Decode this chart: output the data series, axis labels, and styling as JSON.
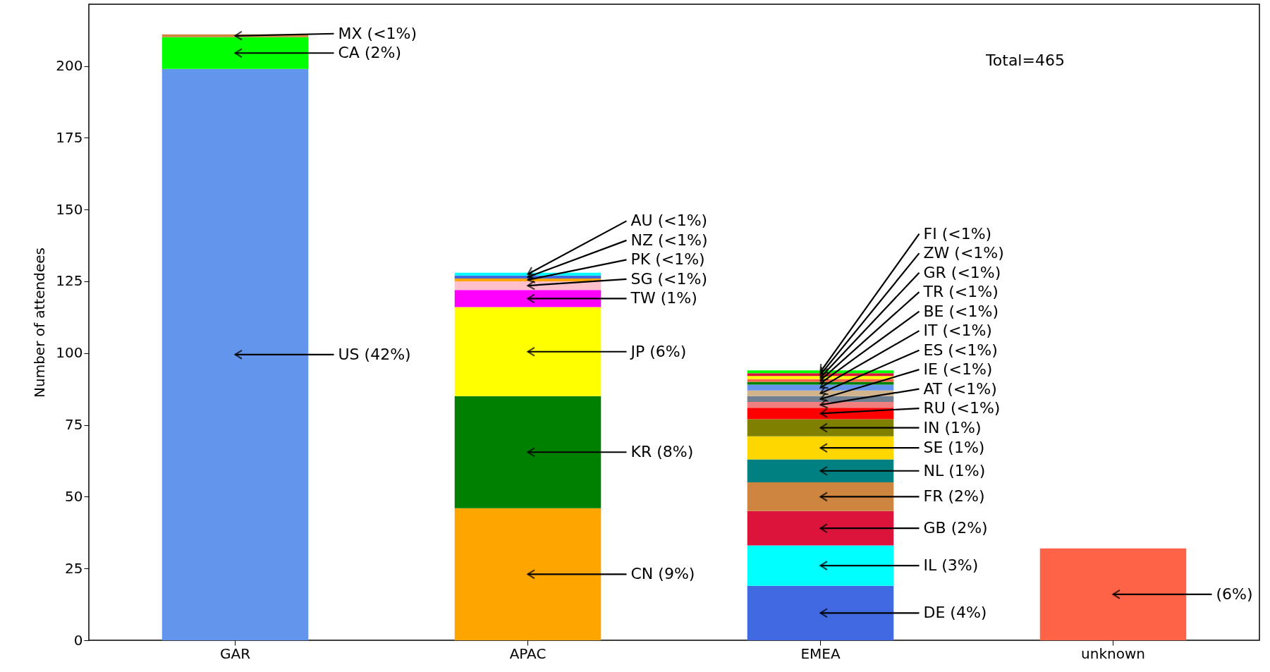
{
  "chart_data": {
    "type": "bar",
    "stacked": true,
    "ylabel": "Number of attendees",
    "categories": [
      "GAR",
      "APAC",
      "EMEA",
      "unknown"
    ],
    "ylim": [
      0,
      221.5
    ],
    "yticks": [
      0,
      25,
      50,
      75,
      100,
      125,
      150,
      175,
      200
    ],
    "series": [
      {
        "name": "US (42%)",
        "color": "#6495ed",
        "values": [
          199,
          null,
          null,
          null
        ]
      },
      {
        "name": "CA (2%)",
        "color": "#00ff00",
        "values": [
          11,
          null,
          null,
          null
        ]
      },
      {
        "name": "MX (<1%)",
        "color": "#cd853f",
        "values": [
          1,
          null,
          null,
          null
        ]
      },
      {
        "name": "CN (9%)",
        "color": "#ffa500",
        "values": [
          null,
          46,
          null,
          null
        ]
      },
      {
        "name": "KR (8%)",
        "color": "#008000",
        "values": [
          null,
          39,
          null,
          null
        ]
      },
      {
        "name": "JP (6%)",
        "color": "#ffff00",
        "values": [
          null,
          31,
          null,
          null
        ]
      },
      {
        "name": "TW (1%)",
        "color": "#ff00ff",
        "values": [
          null,
          6,
          null,
          null
        ]
      },
      {
        "name": "SG (<1%)",
        "color": "#ffc0cb",
        "values": [
          null,
          3,
          null,
          null
        ]
      },
      {
        "name": "PK (<1%)",
        "color": "#ffa500",
        "values": [
          null,
          1,
          null,
          null
        ]
      },
      {
        "name": "NZ (<1%)",
        "color": "#4169e1",
        "values": [
          null,
          1,
          null,
          null
        ]
      },
      {
        "name": "AU (<1%)",
        "color": "#00ffff",
        "values": [
          null,
          1,
          null,
          null
        ]
      },
      {
        "name": "DE (4%)",
        "color": "#4169e1",
        "values": [
          null,
          null,
          19,
          null
        ]
      },
      {
        "name": "IL (3%)",
        "color": "#00ffff",
        "values": [
          null,
          null,
          14,
          null
        ]
      },
      {
        "name": "GB (2%)",
        "color": "#dc143c",
        "values": [
          null,
          null,
          12,
          null
        ]
      },
      {
        "name": "FR (2%)",
        "color": "#cd853f",
        "values": [
          null,
          null,
          10,
          null
        ]
      },
      {
        "name": "NL (1%)",
        "color": "#008080",
        "values": [
          null,
          null,
          8,
          null
        ]
      },
      {
        "name": "SE (1%)",
        "color": "#ffd700",
        "values": [
          null,
          null,
          8,
          null
        ]
      },
      {
        "name": "IN (1%)",
        "color": "#808000",
        "values": [
          null,
          null,
          6,
          null
        ]
      },
      {
        "name": "RU (<1%)",
        "color": "#ff0000",
        "values": [
          null,
          null,
          4,
          null
        ]
      },
      {
        "name": "AT (<1%)",
        "color": "#f08080",
        "values": [
          null,
          null,
          2,
          null
        ]
      },
      {
        "name": "IE (<1%)",
        "color": "#708090",
        "values": [
          null,
          null,
          2,
          null
        ]
      },
      {
        "name": "ES (<1%)",
        "color": "#d2b48c",
        "values": [
          null,
          null,
          2,
          null
        ]
      },
      {
        "name": "IT (<1%)",
        "color": "#6495ed",
        "values": [
          null,
          null,
          2,
          null
        ]
      },
      {
        "name": "BE (<1%)",
        "color": "#008000",
        "values": [
          null,
          null,
          1,
          null
        ]
      },
      {
        "name": "TR (<1%)",
        "color": "#ff6347",
        "values": [
          null,
          null,
          1,
          null
        ]
      },
      {
        "name": "GR (<1%)",
        "color": "#ffff00",
        "values": [
          null,
          null,
          1,
          null
        ]
      },
      {
        "name": "ZW (<1%)",
        "color": "#dc143c",
        "values": [
          null,
          null,
          1,
          null
        ]
      },
      {
        "name": "FI (<1%)",
        "color": "#00ff00",
        "values": [
          null,
          null,
          1,
          null
        ]
      },
      {
        "name": "(6%)",
        "color": "#ff6347",
        "values": [
          null,
          null,
          null,
          32
        ]
      }
    ],
    "annotations": [
      "Total=465"
    ]
  }
}
